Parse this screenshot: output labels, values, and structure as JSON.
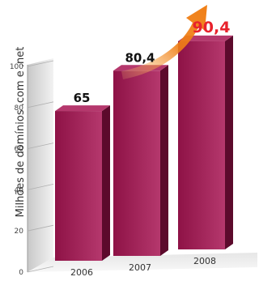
{
  "chart_data": {
    "type": "bar",
    "title": "",
    "categories": [
      "2006",
      "2007",
      "2008"
    ],
    "values": [
      65,
      80.4,
      90.4
    ],
    "value_labels": [
      "65",
      "80,4",
      "90,4"
    ],
    "ylabel": "Milhões de domínios .com e .net",
    "xlabel": "",
    "ylim": [
      0,
      100
    ],
    "yticks": [
      "0",
      "20",
      "40",
      "60",
      "80",
      "100"
    ],
    "grid": true,
    "colors": {
      "bar_front": "#8e1246",
      "bar_side": "#5c0a2c",
      "bar_top": "#b5386d",
      "highlight_label": "#e8222c",
      "label": "#111111",
      "arrow_start": "#f9c77a",
      "arrow_end": "#f07f16"
    }
  }
}
